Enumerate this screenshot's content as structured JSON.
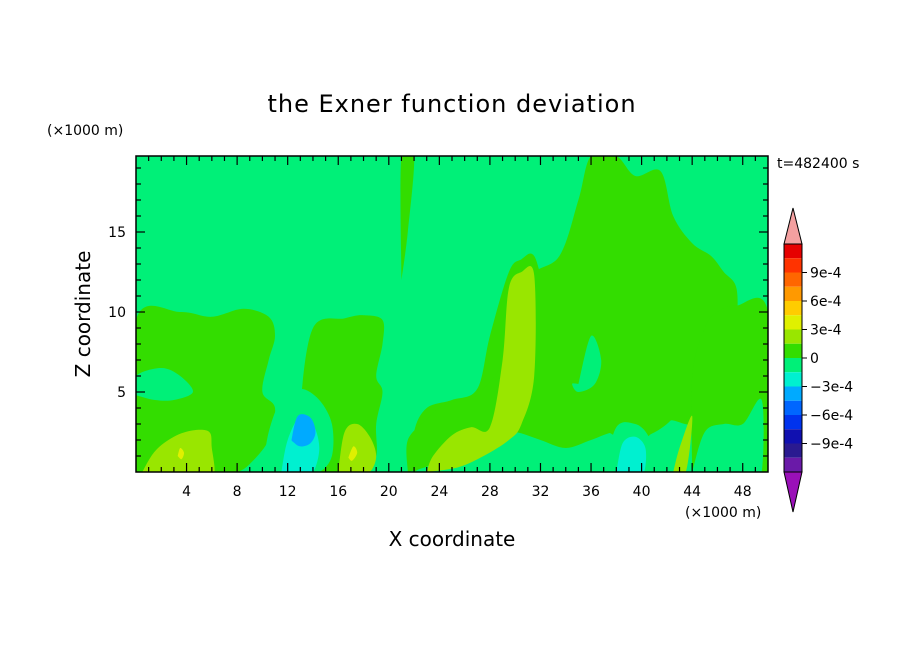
{
  "chart_data": {
    "type": "heatmap",
    "title": "the Exner function deviation",
    "xlabel": "X coordinate",
    "ylabel": "Z coordinate",
    "x_unit": "(×1000 m)",
    "y_unit": "(×1000 m)",
    "time_label": "t=482400 s",
    "xlim": [
      0,
      50
    ],
    "ylim": [
      0,
      19.75
    ],
    "x_ticks": [
      4,
      8,
      12,
      16,
      20,
      24,
      28,
      32,
      36,
      40,
      44,
      48
    ],
    "y_ticks": [
      5,
      10,
      15
    ],
    "colorbar": {
      "tick_labels": [
        "9e-4",
        "6e-4",
        "3e-4",
        "0",
        "−3e-4",
        "−6e-4",
        "−9e-4"
      ],
      "tick_values": [
        0.0009,
        0.0006,
        0.0003,
        0,
        -0.0003,
        -0.0006,
        -0.0009
      ],
      "levels": [
        0.0012,
        0.00105,
        0.0009,
        0.00075,
        0.0006,
        0.00045,
        0.0003,
        0.00015,
        0,
        -0.00015,
        -0.0003,
        -0.00045,
        -0.0006,
        -0.00075,
        -0.0009,
        -0.00105,
        -0.0012
      ],
      "colors": [
        "#f4a0a0",
        "#e60000",
        "#ff3300",
        "#ff6600",
        "#ff9900",
        "#ffcc00",
        "#e0f000",
        "#99e600",
        "#33dd00",
        "#00f078",
        "#00f0d0",
        "#00aaff",
        "#0066ff",
        "#0033ee",
        "#1010b0",
        "#2a1a90",
        "#6a1aa8",
        "#9a10b8"
      ]
    },
    "regions": [
      {
        "level": 0,
        "x": [
          0,
          0,
          3.5,
          6,
          8.5,
          10.5,
          11,
          10.5,
          10,
          11,
          10.5,
          9,
          8,
          7,
          5.5,
          4,
          2.5,
          1,
          0
        ],
        "y": [
          0,
          9.5,
          10,
          9.7,
          10.2,
          9.7,
          8.5,
          7,
          5,
          4,
          2,
          0.5,
          0,
          0,
          0,
          0,
          0,
          0,
          0
        ]
      },
      {
        "level": 0,
        "x": [
          13,
          13,
          14,
          16.5,
          18,
          19.5,
          19.5,
          19,
          19.5,
          19,
          19,
          18,
          16,
          14,
          13
        ],
        "y": [
          0,
          4,
          9,
          9.6,
          9.8,
          9.5,
          8,
          6,
          5,
          3,
          1,
          0,
          0,
          0,
          0
        ]
      },
      {
        "level": 0,
        "x": [
          22,
          22,
          23,
          25,
          27,
          28,
          29.5,
          30.5,
          31.5,
          32.5,
          33.5,
          35,
          36,
          38.5,
          40,
          42,
          43.5,
          43.5,
          42,
          39,
          36,
          33,
          30,
          27,
          25,
          23,
          22
        ],
        "y": [
          0,
          2.5,
          4,
          4.5,
          5.2,
          8.5,
          12.5,
          13.3,
          13.5,
          11,
          10.5,
          11,
          9.5,
          9.2,
          9,
          9.5,
          8.5,
          5,
          3,
          2,
          3,
          3,
          2.5,
          2,
          1.5,
          0.5,
          0
        ]
      },
      {
        "level": 0,
        "x": [
          21.5,
          21.5,
          23,
          24,
          25.5,
          27,
          29.5,
          31,
          33.5,
          35,
          36,
          38,
          39.5,
          41.5,
          42.5,
          44,
          45.5,
          46.5,
          47.5,
          47.5,
          47,
          45.5,
          44,
          42,
          40,
          38,
          36,
          34,
          32,
          30,
          28,
          27,
          26,
          25,
          24.5,
          24,
          23.5,
          22.5,
          21.5
        ],
        "y": [
          0,
          2,
          3.3,
          4,
          4.5,
          4.8,
          7.5,
          12,
          13.5,
          17,
          19.75,
          19.75,
          18.5,
          18.8,
          16,
          14.3,
          13.5,
          12.5,
          11.5,
          9,
          6,
          4.3,
          3,
          3.2,
          2,
          2.5,
          2,
          1.5,
          2,
          2.5,
          2.5,
          2,
          1.5,
          1,
          0.8,
          0.8,
          0.5,
          0.2,
          0
        ]
      },
      {
        "level": 0,
        "x": [
          44,
          44,
          45,
          46,
          47.5,
          50,
          50,
          49,
          47.5,
          45.5,
          44
        ],
        "y": [
          0,
          6,
          9,
          10,
          10.4,
          10,
          0,
          0,
          0,
          0,
          0
        ]
      },
      {
        "level": 0,
        "x": [
          21,
          21,
          22,
          21.5,
          21
        ],
        "y": [
          12,
          19.75,
          19.75,
          15,
          12
        ]
      },
      {
        "level": 0.00015,
        "x": [
          0.5,
          1.5,
          3,
          4.5,
          5.8,
          6,
          6.2,
          5.5,
          4,
          2.5,
          0.5
        ],
        "y": [
          0,
          1.3,
          2.2,
          2.6,
          2.5,
          1.5,
          0,
          0,
          0,
          0,
          0
        ]
      },
      {
        "level": 0.00015,
        "x": [
          16,
          16.5,
          17.5,
          18.5,
          19,
          18.5,
          17.5,
          16
        ],
        "y": [
          0,
          2.5,
          3,
          2.2,
          1,
          0,
          0,
          0
        ]
      },
      {
        "level": 0.00015,
        "x": [
          23,
          23.5,
          25,
          26.5,
          28,
          29,
          29.5,
          30.5,
          31.5,
          31.5,
          30.5,
          29.5,
          27.5,
          25.5,
          23
        ],
        "y": [
          0,
          1,
          2.3,
          2.8,
          2.8,
          7,
          11.5,
          12.5,
          12.3,
          6,
          3,
          2,
          1,
          0.3,
          0
        ]
      },
      {
        "level": 0.00015,
        "x": [
          42.5,
          43,
          44,
          43.5,
          42.5
        ],
        "y": [
          0,
          1.5,
          3.5,
          0,
          0
        ]
      },
      {
        "level": -0.00015,
        "x": [
          0,
          0,
          2,
          3.5,
          4.5,
          3,
          1.5,
          0
        ],
        "y": [
          4.8,
          6,
          6.5,
          6,
          5,
          4.5,
          4.5,
          4.8
        ]
      },
      {
        "level": -0.00015,
        "x": [
          10,
          10.5,
          11.5,
          13,
          14.5,
          15.5,
          15.5,
          14.5,
          13,
          11.5,
          10.5,
          10
        ],
        "y": [
          0,
          2.5,
          4.5,
          5.2,
          4.5,
          3,
          1,
          0,
          0,
          0,
          0,
          0
        ]
      },
      {
        "level": -0.00015,
        "x": [
          35,
          36,
          36.8,
          36.3,
          35,
          34.5,
          35
        ],
        "y": [
          5.5,
          8.5,
          7,
          5.5,
          5,
          5.5,
          5.5
        ]
      },
      {
        "level": -0.00015,
        "x": [
          37,
          38,
          39.5,
          40.5,
          41,
          40,
          38,
          37
        ],
        "y": [
          0,
          2.8,
          3,
          2.3,
          1,
          0,
          0,
          0
        ]
      },
      {
        "level": -0.00015,
        "x": [
          44,
          45,
          46.5,
          48,
          49.5,
          49.5,
          48.5,
          46.5,
          44.5,
          44
        ],
        "y": [
          0,
          2.5,
          3,
          3,
          4.5,
          0,
          0,
          0,
          0,
          0
        ]
      },
      {
        "level": -0.0003,
        "x": [
          11.5,
          12,
          13,
          14,
          14.5,
          14,
          13,
          12,
          11.5
        ],
        "y": [
          0,
          2,
          3.5,
          3,
          1.5,
          0,
          0,
          0,
          0
        ]
      },
      {
        "level": -0.0003,
        "x": [
          38,
          38.5,
          39.5,
          40.3,
          40.2,
          39.5,
          38.5,
          38
        ],
        "y": [
          0,
          1.8,
          2.2,
          1.5,
          0,
          0,
          0,
          0
        ]
      },
      {
        "level": -0.00045,
        "x": [
          12.3,
          12.8,
          13.8,
          14.2,
          13.8,
          13,
          12.4,
          12.3
        ],
        "y": [
          2,
          3.5,
          3.4,
          2.5,
          1.8,
          1.6,
          1.9,
          2
        ]
      },
      {
        "level": 0.0003,
        "x": [
          3.3,
          3.5,
          3.8,
          3.6,
          3.3
        ],
        "y": [
          1,
          1.5,
          1.2,
          0.8,
          1
        ]
      },
      {
        "level": 0.0003,
        "x": [
          16.8,
          17.2,
          17.5,
          17.1,
          16.8
        ],
        "y": [
          0.9,
          1.6,
          1.2,
          0.7,
          0.9
        ]
      }
    ]
  }
}
